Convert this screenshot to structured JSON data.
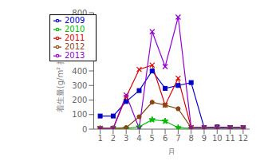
{
  "chart_data": {
    "type": "line",
    "xlabel": "月",
    "ylabel": "着生量(g/m² 押陽抴藻)",
    "x": [
      1,
      2,
      3,
      4,
      5,
      6,
      7,
      8,
      9,
      10,
      11,
      12
    ],
    "xlim": [
      0.5,
      12.5
    ],
    "xticks": [
      1,
      2,
      3,
      4,
      5,
      6,
      7,
      8,
      9,
      10,
      11,
      12
    ],
    "ylim": [
      0,
      800
    ],
    "yticks": [
      0,
      100,
      200,
      300,
      400,
      500,
      600,
      700,
      800
    ],
    "grid": false,
    "legend": "upper left",
    "series": [
      {
        "name": "2009",
        "color": "#0000CC",
        "marker": "square",
        "line_style": "solid",
        "values": [
          90,
          90,
          190,
          265,
          400,
          280,
          300,
          320,
          10,
          15,
          10,
          10
        ]
      },
      {
        "name": "2010",
        "color": "#00BB00",
        "marker": "star",
        "line_style": "solid",
        "values": [
          5,
          5,
          5,
          15,
          65,
          55,
          10,
          5,
          5,
          5,
          5,
          5
        ]
      },
      {
        "name": "2011",
        "color": "#DD0000",
        "marker": "x",
        "line_style": "solid",
        "values": [
          5,
          5,
          220,
          410,
          440,
          165,
          350,
          10,
          10,
          10,
          10,
          10
        ]
      },
      {
        "name": "2012",
        "color": "#8B4513",
        "marker": "circle",
        "line_style": "solid",
        "values": [
          5,
          5,
          10,
          85,
          185,
          165,
          140,
          10,
          10,
          10,
          10,
          10
        ]
      },
      {
        "name": "2013",
        "color": "#9400D3",
        "marker": "x",
        "line_style": "solid",
        "values": [
          5,
          5,
          235,
          5,
          670,
          430,
          770,
          10,
          10,
          10,
          10,
          10
        ]
      }
    ]
  }
}
